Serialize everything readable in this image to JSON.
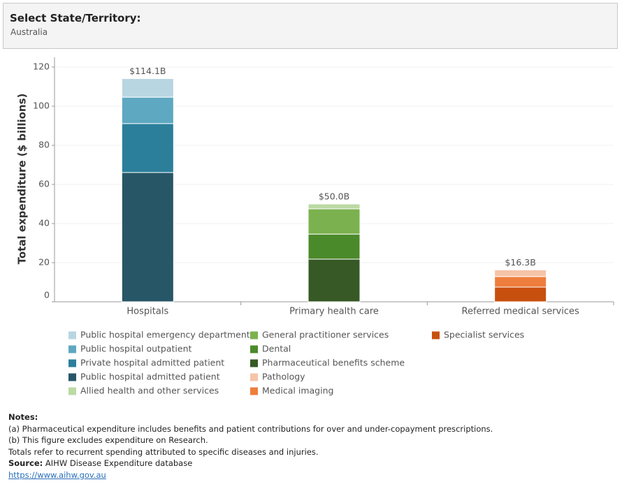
{
  "filter": {
    "label": "Select State/Territory:",
    "value": "Australia"
  },
  "chart_data": {
    "type": "stacked-bar",
    "y_label": "Total expenditure ($ billions)",
    "categories": [
      "Hospitals",
      "Primary health care",
      "Referred medical services"
    ],
    "series": [
      {
        "name": "Public hospital emergency department",
        "color": "#b8d6e2",
        "values": [
          9.5,
          null,
          null
        ]
      },
      {
        "name": "Public hospital outpatient",
        "color": "#5ea8c1",
        "values": [
          13.5,
          null,
          null
        ]
      },
      {
        "name": "Private hospital admitted patient",
        "color": "#2b7f9b",
        "values": [
          25.0,
          null,
          null
        ]
      },
      {
        "name": "Public hospital admitted patient",
        "color": "#275667",
        "values": [
          66.1,
          null,
          null
        ]
      },
      {
        "name": "Allied health and other services",
        "color": "#bcdaa4",
        "values": [
          null,
          2.5,
          null
        ]
      },
      {
        "name": "General practitioner services",
        "color": "#7bb24f",
        "values": [
          null,
          12.9,
          null
        ]
      },
      {
        "name": "Dental",
        "color": "#4b8a2a",
        "values": [
          null,
          12.8,
          null
        ]
      },
      {
        "name": "Pharmaceutical benefits scheme",
        "color": "#365926",
        "values": [
          null,
          21.8,
          null
        ]
      },
      {
        "name": "Pathology",
        "color": "#f6c4a6",
        "values": [
          null,
          null,
          3.4
        ]
      },
      {
        "name": "Medical imaging",
        "color": "#ee7e3c",
        "values": [
          null,
          null,
          5.4
        ]
      },
      {
        "name": "Specialist services",
        "color": "#c8500f",
        "values": [
          null,
          null,
          7.5
        ]
      }
    ],
    "totals": {
      "values": [
        114.1,
        50.0,
        16.3
      ],
      "value_labels": [
        "$114.1B",
        "$50.0B",
        "$16.3B"
      ]
    },
    "ylim": [
      0,
      125
    ],
    "yticks": [
      0,
      20,
      40,
      60,
      80,
      100,
      120
    ],
    "grid": true
  },
  "notes": {
    "heading": "Notes:",
    "lines": [
      "(a) Pharmaceutical expenditure includes benefits and patient contributions for over and under-copayment prescriptions.",
      "(b) This figure excludes expenditure on Research.",
      "Totals refer to recurrent spending attributed to specific diseases and injuries."
    ],
    "source_label": "Source:",
    "source": "AIHW Disease Expenditure database",
    "link": "https://www.aihw.gov.au"
  }
}
